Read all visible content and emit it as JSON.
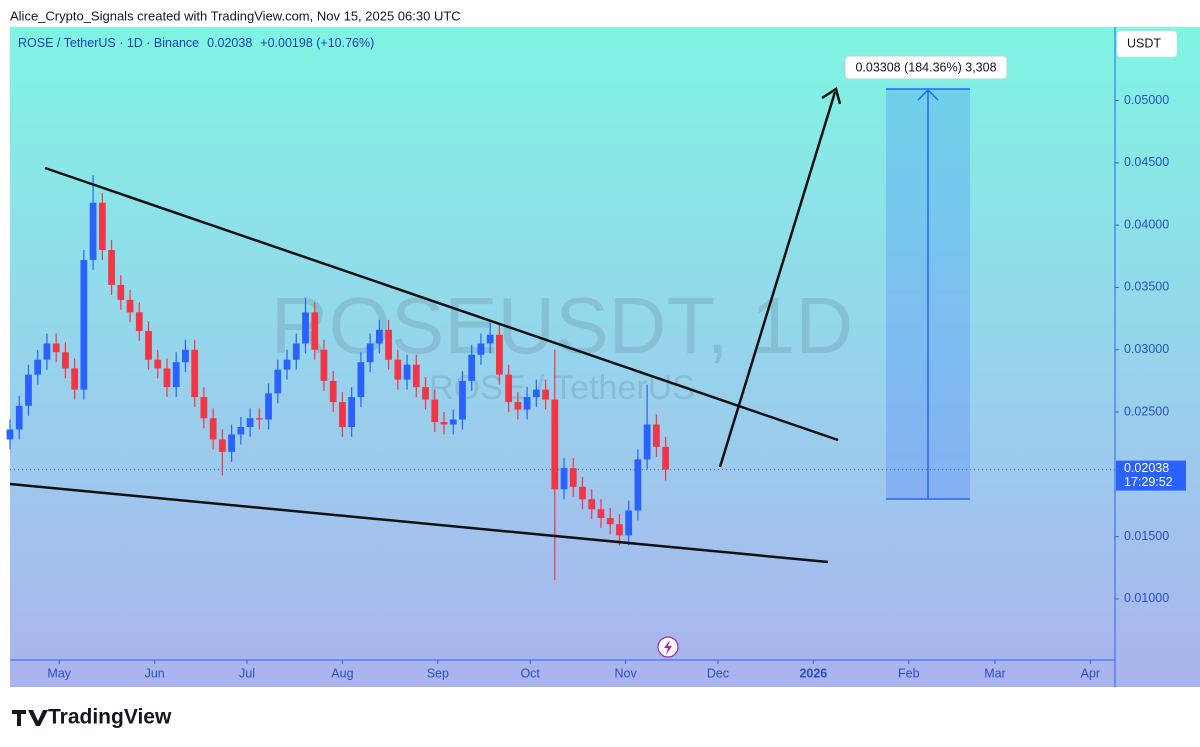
{
  "header": {
    "attribution": "Alice_Crypto_Signals created with TradingView.com, Nov 15, 2025 06:30 UTC"
  },
  "chart_data": {
    "type": "candlestick",
    "legend_title": "ROSE / TetherUS · 1D · Binance",
    "last_price": 0.02038,
    "change_label": "+0.00198 (+10.76%)",
    "countdown": "17:29:52",
    "y_axis_unit": "USDT",
    "watermark": "ROSEUSDT, 1D",
    "watermark_sub": "ROSE / TetherUS",
    "annotation": "0.03308 (184.36%) 3,308",
    "up_color": "#2962ff",
    "down_color": "#f23645",
    "xlim": [
      -16,
      343
    ],
    "xticks": [
      {
        "value": 0,
        "label": "May"
      },
      {
        "value": 31,
        "label": "Jun"
      },
      {
        "value": 61,
        "label": "Jul"
      },
      {
        "value": 92,
        "label": "Aug"
      },
      {
        "value": 123,
        "label": "Sep"
      },
      {
        "value": 153,
        "label": "Oct"
      },
      {
        "value": 184,
        "label": "Nov"
      },
      {
        "value": 214,
        "label": "Dec"
      },
      {
        "value": 245,
        "label": "2026"
      },
      {
        "value": 276,
        "label": "Feb"
      },
      {
        "value": 304,
        "label": "Mar"
      },
      {
        "value": 335,
        "label": "Apr"
      }
    ],
    "ylim": [
      0.0051,
      0.0559
    ],
    "yticks": [
      {
        "value": 0.01,
        "label": "0.01000"
      },
      {
        "value": 0.015,
        "label": "0.01500"
      },
      {
        "value": 0.025,
        "label": "0.02500"
      },
      {
        "value": 0.03,
        "label": "0.03000"
      },
      {
        "value": 0.035,
        "label": "0.03500"
      },
      {
        "value": 0.04,
        "label": "0.04000"
      },
      {
        "value": 0.045,
        "label": "0.04500"
      },
      {
        "value": 0.05,
        "label": "0.05000"
      }
    ],
    "x": [
      -16,
      -13,
      -10,
      -7,
      -4,
      -1,
      2,
      5,
      8,
      11,
      14,
      17,
      20,
      23,
      26,
      29,
      32,
      35,
      38,
      41,
      44,
      47,
      50,
      53,
      56,
      59,
      62,
      65,
      68,
      71,
      74,
      77,
      80,
      83,
      86,
      89,
      92,
      95,
      98,
      101,
      104,
      107,
      110,
      113,
      116,
      119,
      122,
      125,
      128,
      131,
      134,
      137,
      140,
      143,
      146,
      149,
      152,
      155,
      158,
      161,
      164,
      167,
      170,
      173,
      176,
      179,
      182,
      185,
      188,
      191,
      194,
      197
    ],
    "open": [
      0.0228,
      0.0236,
      0.0255,
      0.028,
      0.0292,
      0.0305,
      0.0298,
      0.0285,
      0.0268,
      0.0372,
      0.0418,
      0.038,
      0.0352,
      0.034,
      0.033,
      0.0315,
      0.0292,
      0.0285,
      0.027,
      0.029,
      0.03,
      0.0262,
      0.0245,
      0.0228,
      0.0218,
      0.0232,
      0.0238,
      0.0245,
      0.0244,
      0.0265,
      0.0284,
      0.0292,
      0.0305,
      0.033,
      0.03,
      0.0275,
      0.0258,
      0.0238,
      0.0262,
      0.029,
      0.0305,
      0.0316,
      0.0292,
      0.0276,
      0.0288,
      0.027,
      0.026,
      0.0242,
      0.024,
      0.0244,
      0.0275,
      0.0296,
      0.0305,
      0.0312,
      0.028,
      0.0258,
      0.0252,
      0.0262,
      0.0268,
      0.026,
      0.0188,
      0.0205,
      0.019,
      0.018,
      0.0172,
      0.0165,
      0.016,
      0.0151,
      0.0171,
      0.0212,
      0.024,
      0.0222
    ],
    "high": [
      0.0244,
      0.0263,
      0.0288,
      0.03,
      0.0313,
      0.0313,
      0.0306,
      0.0293,
      0.038,
      0.044,
      0.0426,
      0.0388,
      0.036,
      0.0348,
      0.0338,
      0.0323,
      0.03,
      0.0293,
      0.0298,
      0.0308,
      0.0308,
      0.027,
      0.0253,
      0.0236,
      0.024,
      0.0246,
      0.0253,
      0.0253,
      0.0273,
      0.0292,
      0.03,
      0.0313,
      0.0342,
      0.0338,
      0.0308,
      0.0283,
      0.0266,
      0.027,
      0.0298,
      0.0313,
      0.0324,
      0.0324,
      0.03,
      0.0296,
      0.0296,
      0.0278,
      0.0268,
      0.025,
      0.0252,
      0.0283,
      0.0304,
      0.0313,
      0.0322,
      0.032,
      0.0288,
      0.0266,
      0.027,
      0.0276,
      0.0276,
      0.03,
      0.0213,
      0.0213,
      0.0198,
      0.0188,
      0.018,
      0.0173,
      0.0168,
      0.0179,
      0.022,
      0.0272,
      0.0248,
      0.023
    ],
    "low": [
      0.022,
      0.0228,
      0.0247,
      0.0272,
      0.0284,
      0.029,
      0.0277,
      0.026,
      0.026,
      0.0364,
      0.0372,
      0.0344,
      0.0332,
      0.0322,
      0.0307,
      0.0284,
      0.0277,
      0.0262,
      0.0262,
      0.0282,
      0.0254,
      0.0237,
      0.022,
      0.0199,
      0.021,
      0.0224,
      0.023,
      0.0236,
      0.0236,
      0.0257,
      0.0276,
      0.0284,
      0.0297,
      0.0292,
      0.0267,
      0.025,
      0.023,
      0.023,
      0.0254,
      0.0282,
      0.0297,
      0.0284,
      0.0268,
      0.0268,
      0.0262,
      0.0252,
      0.0234,
      0.0232,
      0.0232,
      0.0236,
      0.0267,
      0.0288,
      0.0297,
      0.0272,
      0.025,
      0.0244,
      0.0244,
      0.0254,
      0.0252,
      0.0115,
      0.018,
      0.0182,
      0.0172,
      0.0164,
      0.0157,
      0.0152,
      0.0143,
      0.0143,
      0.0163,
      0.0204,
      0.0214,
      0.0195
    ],
    "close": [
      0.0236,
      0.0255,
      0.028,
      0.0292,
      0.0305,
      0.0298,
      0.0285,
      0.0268,
      0.0372,
      0.0418,
      0.038,
      0.0352,
      0.034,
      0.033,
      0.0315,
      0.0292,
      0.0285,
      0.027,
      0.029,
      0.03,
      0.0262,
      0.0245,
      0.0228,
      0.0218,
      0.0232,
      0.0238,
      0.0245,
      0.0244,
      0.0265,
      0.0284,
      0.0292,
      0.0305,
      0.033,
      0.03,
      0.0275,
      0.0258,
      0.0238,
      0.0262,
      0.029,
      0.0305,
      0.0316,
      0.0292,
      0.0276,
      0.0288,
      0.027,
      0.026,
      0.0242,
      0.024,
      0.0244,
      0.0275,
      0.0296,
      0.0305,
      0.0312,
      0.028,
      0.0258,
      0.0252,
      0.0262,
      0.0268,
      0.026,
      0.0188,
      0.0205,
      0.019,
      0.018,
      0.0172,
      0.0165,
      0.016,
      0.0151,
      0.0171,
      0.0212,
      0.024,
      0.0222,
      0.02038
    ]
  },
  "footer": {
    "brand": "TradingView"
  }
}
